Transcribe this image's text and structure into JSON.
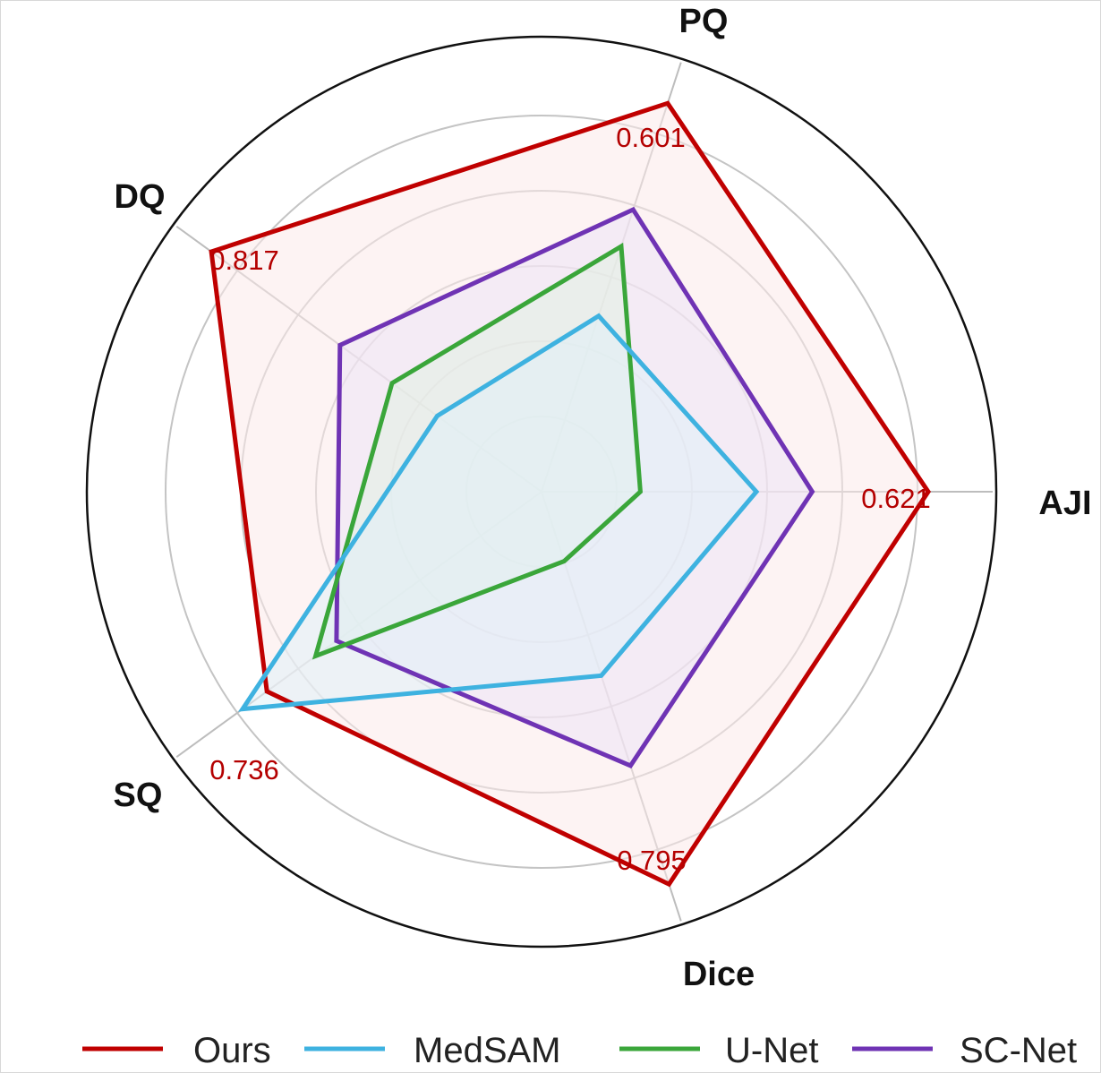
{
  "chart_data": {
    "type": "radar",
    "axes": [
      "AJI",
      "PQ",
      "DQ",
      "SQ",
      "Dice"
    ],
    "range": [
      0,
      1
    ],
    "grid": true,
    "legend_position": "bottom",
    "series": [
      {
        "name": "Ours",
        "color": "#c00000",
        "fill": "#fbeaea",
        "values": [
          0.9,
          0.95,
          0.95,
          0.79,
          0.96
        ]
      },
      {
        "name": "MedSAM",
        "color": "#3eb2e0",
        "fill": "#e0f1f8",
        "values": [
          0.5,
          0.43,
          0.3,
          0.86,
          0.45
        ]
      },
      {
        "name": "U-Net",
        "color": "#3aa63a",
        "fill": "#e2f1e2",
        "values": [
          0.23,
          0.6,
          0.43,
          0.65,
          0.17
        ]
      },
      {
        "name": "SC-Net",
        "color": "#6f33b4",
        "fill": "#ece4f5",
        "values": [
          0.63,
          0.69,
          0.58,
          0.59,
          0.67
        ]
      }
    ],
    "annotations": [
      {
        "axis": "AJI",
        "text": "0.621"
      },
      {
        "axis": "PQ",
        "text": "0.601"
      },
      {
        "axis": "DQ",
        "text": "0.817"
      },
      {
        "axis": "SQ",
        "text": "0.736"
      },
      {
        "axis": "Dice",
        "text": "0.795"
      }
    ]
  }
}
